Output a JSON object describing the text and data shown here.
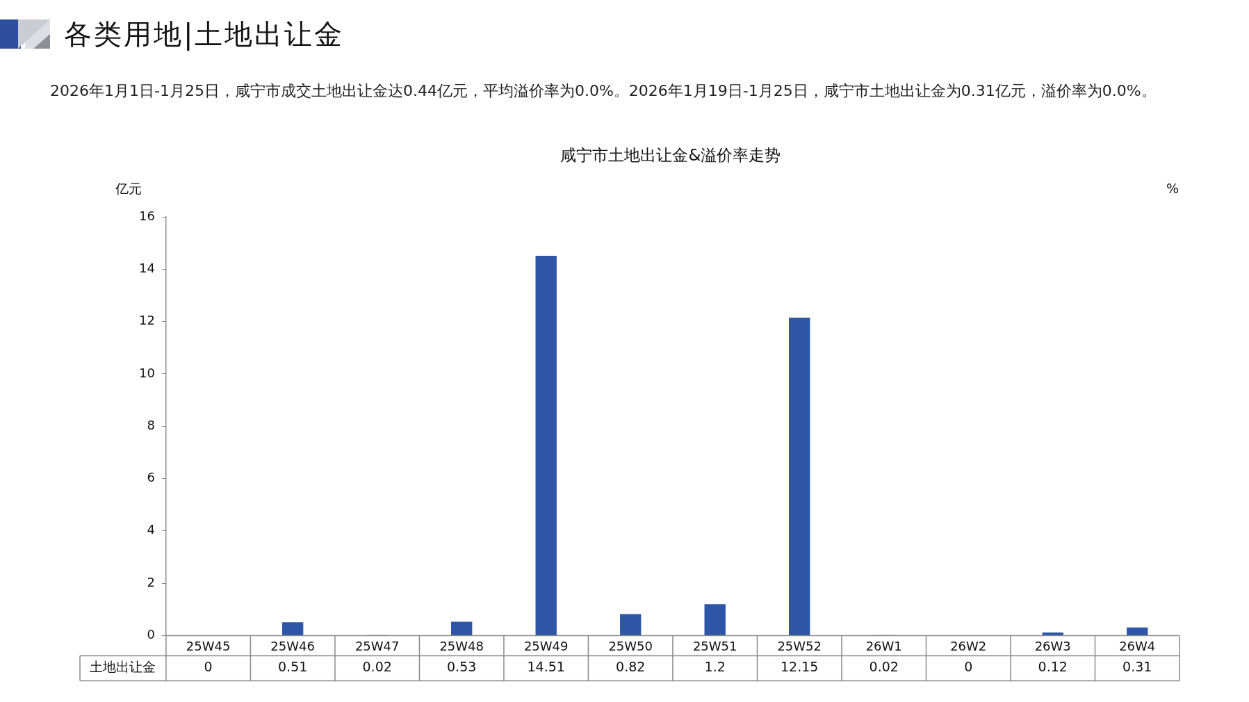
{
  "chart_data": {
    "type": "bar",
    "title": "咸宁市土地出让金&溢价率走势",
    "subtitle": "2026年1月1日-1月25日，咸宁市成交土地出让金达0.44亿元，平均溢价率为0.0%。2026年1月19日-1月25日，咸宁市土地出让金为0.31亿元，溢价率为0.0%。",
    "annotations": [
      "各类用地|土地出让金"
    ],
    "ylabel": "亿元",
    "y2label": "%",
    "categories": [
      "25W45",
      "25W46",
      "25W47",
      "25W48",
      "25W49",
      "25W50",
      "25W51",
      "25W52",
      "26W1",
      "26W2",
      "26W3",
      "26W4"
    ],
    "series": [
      {
        "name": "土地出让金",
        "color": "#2e56a6",
        "values": [
          0,
          0.51,
          0.02,
          0.53,
          14.51,
          0.82,
          1.2,
          12.15,
          0.02,
          0,
          0.12,
          0.31
        ]
      }
    ],
    "ylim": [
      0,
      16
    ],
    "yticks": [
      0,
      2,
      4,
      6,
      8,
      10,
      12,
      14,
      16
    ],
    "data_labels": true,
    "legend": false,
    "grid": false
  }
}
